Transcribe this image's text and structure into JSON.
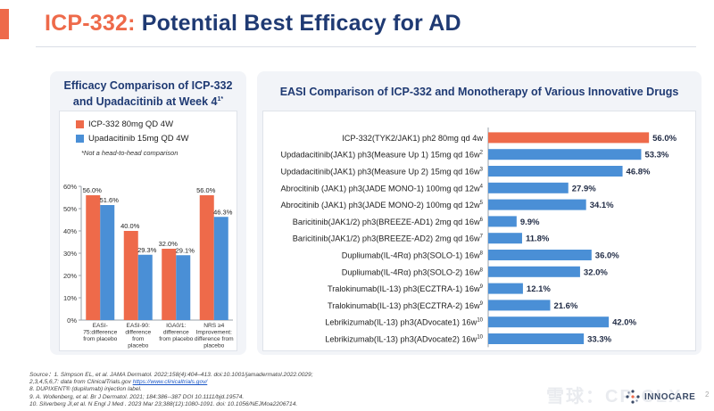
{
  "header": {
    "title_highlight": "ICP-332:",
    "title_rest": " Potential Best Efficacy for AD"
  },
  "left_panel": {
    "title_line1": "Efficacy Comparison of ICP-332",
    "title_line2": "and Upadacitinib at Week 4",
    "title_sup": "1*",
    "legend": [
      {
        "label": "ICP-332 80mg QD 4W",
        "color": "#ee6a4a"
      },
      {
        "label": "Upadacitinib 15mg QD 4W",
        "color": "#4a8fd6"
      }
    ],
    "note": "*Not a head-to-head comparison"
  },
  "right_panel": {
    "title": "EASI Comparison of ICP-332 and Monotherapy of Various Innovative Drugs"
  },
  "chart_data": [
    {
      "type": "bar",
      "categories": [
        [
          "EASI-",
          "75:difference",
          "from placebo"
        ],
        [
          "EASI-90:",
          "difference",
          "from",
          "placebo"
        ],
        [
          "IGA0/1:",
          "difference",
          "from placebo"
        ],
        [
          "NRS ≥4",
          "Improvement:",
          "difference from",
          "placebo"
        ]
      ],
      "series": [
        {
          "name": "ICP-332 80mg QD 4W",
          "values": [
            56.0,
            40.0,
            32.0,
            56.0
          ],
          "labels": [
            "56.0%",
            "40.0%",
            "32.0%",
            "56.0%"
          ]
        },
        {
          "name": "Upadacitinib 15mg QD 4W",
          "values": [
            51.6,
            29.3,
            29.1,
            46.3
          ],
          "labels": [
            "51.6%",
            "29.3%",
            "29.1%",
            "46.3%"
          ]
        }
      ],
      "yticks": [
        "0%",
        "10%",
        "20%",
        "30%",
        "40%",
        "50%",
        "60%"
      ],
      "ylim": [
        0,
        60
      ],
      "grid": false
    },
    {
      "type": "bar",
      "orientation": "horizontal",
      "xlim": [
        0,
        60
      ],
      "bars": [
        {
          "label": "ICP-332(TYK2/JAK1) ph2 80mg qd 4w",
          "sup": "",
          "value": 56.0,
          "text": "56.0%",
          "highlight": true
        },
        {
          "label": "Updadacitinib(JAK1) ph3(Measure Up 1) 15mg qd 16w",
          "sup": "2",
          "value": 53.3,
          "text": "53.3%",
          "highlight": false
        },
        {
          "label": "Updadacitinib(JAK1) ph3(Measure Up 2) 15mg qd 16w",
          "sup": "3",
          "value": 46.8,
          "text": "46.8%",
          "highlight": false
        },
        {
          "label": "Abrocitinib (JAK1) ph3(JADE MONO-1) 100mg qd 12w",
          "sup": "4",
          "value": 27.9,
          "text": "27.9%",
          "highlight": false
        },
        {
          "label": "Abrocitinib (JAK1) ph3(JADE MONO-2) 100mg qd 12w",
          "sup": "5",
          "value": 34.1,
          "text": "34.1%",
          "highlight": false
        },
        {
          "label": "Baricitinib(JAK1/2) ph3(BREEZE-AD1) 2mg qd 16w",
          "sup": "6",
          "value": 9.9,
          "text": "9.9%",
          "highlight": false
        },
        {
          "label": "Baricitinib(JAK1/2) ph3(BREEZE-AD2) 2mg qd 16w",
          "sup": "7",
          "value": 11.8,
          "text": "11.8%",
          "highlight": false
        },
        {
          "label": "Dupliumab(IL-4Rα) ph3(SOLO-1) 16w",
          "sup": "8",
          "value": 36.0,
          "text": "36.0%",
          "highlight": false
        },
        {
          "label": "Dupliumab(IL-4Rα) ph3(SOLO-2) 16w",
          "sup": "8",
          "value": 32.0,
          "text": "32.0%",
          "highlight": false
        },
        {
          "label": "Tralokinumab(IL-13) ph3(ECZTRA-1) 16w",
          "sup": "9",
          "value": 12.1,
          "text": "12.1%",
          "highlight": false
        },
        {
          "label": "Tralokinumab(IL-13) ph3(ECZTRA-2) 16w",
          "sup": "9",
          "value": 21.6,
          "text": "21.6%",
          "highlight": false
        },
        {
          "label": "Lebrikizumab(IL-13) ph3(ADvocate1) 16w",
          "sup": "10",
          "value": 42.0,
          "text": "42.0%",
          "highlight": false
        },
        {
          "label": "Lebrikizumab(IL-13) ph3(ADvocate2) 16w",
          "sup": "10",
          "value": 33.3,
          "text": "33.3%",
          "highlight": false
        }
      ],
      "colors": {
        "highlight": "#ee6a4a",
        "default": "#4a8fd6"
      }
    }
  ],
  "footer": {
    "line1": "Source：1. Simpson EL, et al. JAMA Dermatol. 2022;158(4):404–413. doi:10.1001/jamadermatol.2022.0029;",
    "line2_a": "2,3,4,5,6,7: data from ClinicalTrials.gov  ",
    "line2_link": "https://www.clinicaltrials.gov/",
    "line3": "8. DUPIXENT® (dupilumab) injection label.",
    "line4": "9. A. Wollenberg, et al. Br J Dermatol. 2021; 184:386--387 DOI 10.1111/bjd.19574.",
    "line5": "10. Silverberg JI,et al. N Engl J Med . 2023 Mar 23;388(12):1080-1091. doi: 10.1056/NEJMoa2206714."
  },
  "watermark": "雪球：CP-CLX",
  "logo": {
    "text": "INNOCARE"
  },
  "page_number": "2"
}
